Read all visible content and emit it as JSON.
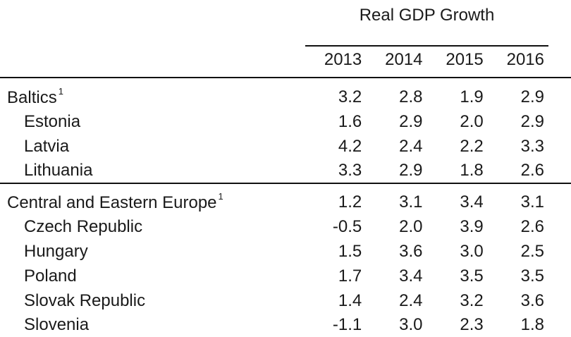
{
  "title": "Real GDP Growth",
  "years": [
    "2013",
    "2014",
    "2015",
    "2016"
  ],
  "groups": [
    {
      "name": "Baltics",
      "note": "1",
      "values": [
        "3.2",
        "2.8",
        "1.9",
        "2.9"
      ],
      "rows": [
        {
          "name": "Estonia",
          "values": [
            "1.6",
            "2.9",
            "2.0",
            "2.9"
          ]
        },
        {
          "name": "Latvia",
          "values": [
            "4.2",
            "2.4",
            "2.2",
            "3.3"
          ]
        },
        {
          "name": "Lithuania",
          "values": [
            "3.3",
            "2.9",
            "1.8",
            "2.6"
          ]
        }
      ]
    },
    {
      "name": "Central and Eastern Europe",
      "note": "1",
      "values": [
        "1.2",
        "3.1",
        "3.4",
        "3.1"
      ],
      "rows": [
        {
          "name": "Czech Republic",
          "values": [
            "-0.5",
            "2.0",
            "3.9",
            "2.6"
          ]
        },
        {
          "name": "Hungary",
          "values": [
            "1.5",
            "3.6",
            "3.0",
            "2.5"
          ]
        },
        {
          "name": "Poland",
          "values": [
            "1.7",
            "3.4",
            "3.5",
            "3.5"
          ]
        },
        {
          "name": "Slovak Republic",
          "values": [
            "1.4",
            "2.4",
            "3.2",
            "3.6"
          ]
        },
        {
          "name": "Slovenia",
          "values": [
            "-1.1",
            "3.0",
            "2.3",
            "1.8"
          ]
        }
      ]
    }
  ]
}
